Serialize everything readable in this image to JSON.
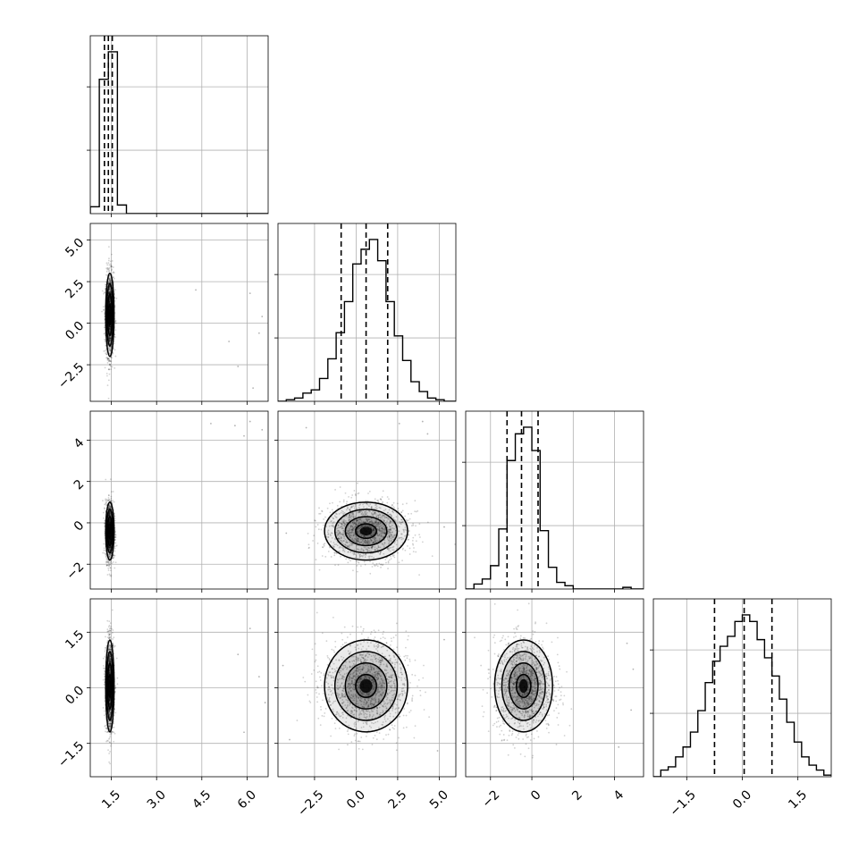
{
  "chart_data": {
    "type": "corner",
    "parameters": [
      "",
      "",
      "",
      ""
    ],
    "grid": true,
    "axis_ranges": [
      [
        0.8,
        6.7
      ],
      [
        -4.7,
        6.0
      ],
      [
        -3.2,
        5.4
      ],
      [
        -2.4,
        2.4
      ]
    ],
    "ticks": [
      {
        "values": [
          1.5,
          3.0,
          4.5,
          6.0
        ],
        "labels": [
          "1.5",
          "3.0",
          "4.5",
          "6.0"
        ]
      },
      {
        "values": [
          -2.5,
          0.0,
          2.5,
          5.0
        ],
        "labels": [
          "−2.5",
          "0.0",
          "2.5",
          "5.0"
        ]
      },
      {
        "values": [
          -2,
          0,
          2,
          4
        ],
        "labels": [
          "−2",
          "0",
          "2",
          "4"
        ]
      },
      {
        "values": [
          -1.5,
          0.0,
          1.5
        ],
        "labels": [
          "−1.5",
          "0.0",
          "1.5"
        ]
      }
    ],
    "quantiles": [
      [
        1.27,
        1.4,
        1.53
      ],
      [
        -0.9,
        0.6,
        1.9
      ],
      [
        -1.2,
        -0.5,
        0.3
      ],
      [
        -0.75,
        0.05,
        0.8
      ]
    ],
    "histograms": [
      {
        "bin_edges": [
          0.8,
          1.1,
          1.4,
          1.7,
          2.0,
          6.7
        ],
        "counts": [
          0.04,
          0.78,
          0.94,
          0.05,
          0.0
        ]
      },
      {
        "bin_edges": [
          -4.7,
          -4.2,
          -3.7,
          -3.2,
          -2.7,
          -2.2,
          -1.7,
          -1.2,
          -0.7,
          -0.2,
          0.3,
          0.8,
          1.3,
          1.8,
          2.3,
          2.8,
          3.3,
          3.8,
          4.3,
          4.8,
          5.3,
          6.0
        ],
        "counts": [
          0.0,
          0.01,
          0.02,
          0.05,
          0.07,
          0.14,
          0.26,
          0.42,
          0.61,
          0.84,
          0.93,
          0.99,
          0.86,
          0.61,
          0.4,
          0.25,
          0.12,
          0.06,
          0.02,
          0.01,
          0.0
        ]
      },
      {
        "bin_edges": [
          -3.2,
          -2.8,
          -2.4,
          -2.0,
          -1.6,
          -1.2,
          -0.8,
          -0.4,
          0.0,
          0.4,
          0.8,
          1.2,
          1.6,
          2.0,
          4.4,
          4.8,
          5.4
        ],
        "counts": [
          0.0,
          0.03,
          0.06,
          0.14,
          0.36,
          0.77,
          0.93,
          0.97,
          0.83,
          0.35,
          0.13,
          0.04,
          0.02,
          0.0,
          0.01,
          0.0
        ]
      },
      {
        "bin_edges": [
          -2.4,
          -2.2,
          -2.0,
          -1.8,
          -1.6,
          -1.4,
          -1.2,
          -1.0,
          -0.8,
          -0.6,
          -0.4,
          -0.2,
          0.0,
          0.2,
          0.4,
          0.6,
          0.8,
          1.0,
          1.2,
          1.4,
          1.6,
          1.8,
          2.0,
          2.2,
          2.4
        ],
        "counts": [
          0.0,
          0.04,
          0.06,
          0.12,
          0.18,
          0.27,
          0.4,
          0.57,
          0.7,
          0.79,
          0.85,
          0.94,
          0.98,
          0.94,
          0.83,
          0.72,
          0.61,
          0.47,
          0.33,
          0.21,
          0.12,
          0.07,
          0.04,
          0.01
        ]
      }
    ],
    "pair_panels": [
      {
        "row": 1,
        "col": 0,
        "center": [
          1.45,
          0.5
        ],
        "spread": [
          0.07,
          1.25
        ],
        "outliers": [
          [
            6.1,
            1.8
          ],
          [
            6.4,
            -0.6
          ],
          [
            5.7,
            -2.6
          ],
          [
            6.2,
            -3.9
          ],
          [
            5.4,
            -1.1
          ],
          [
            4.3,
            2.0
          ],
          [
            6.5,
            0.4
          ]
        ]
      },
      {
        "row": 2,
        "col": 0,
        "center": [
          1.45,
          -0.4
        ],
        "spread": [
          0.07,
          0.7
        ],
        "outliers": [
          [
            5.6,
            4.7
          ],
          [
            6.1,
            4.9
          ],
          [
            6.5,
            4.5
          ],
          [
            5.9,
            4.2
          ],
          [
            4.8,
            4.8
          ]
        ]
      },
      {
        "row": 2,
        "col": 1,
        "center": [
          0.6,
          -0.4
        ],
        "spread": [
          1.25,
          0.7
        ],
        "outliers": [
          [
            4.0,
            4.9
          ],
          [
            2.6,
            4.8
          ],
          [
            -3.0,
            4.6
          ],
          [
            5.3,
            -0.2
          ],
          [
            -4.2,
            -0.5
          ],
          [
            4.3,
            4.3
          ]
        ]
      },
      {
        "row": 3,
        "col": 0,
        "center": [
          1.45,
          0.05
        ],
        "spread": [
          0.07,
          0.62
        ],
        "outliers": [
          [
            6.1,
            1.6
          ],
          [
            6.4,
            0.3
          ],
          [
            5.9,
            -1.2
          ],
          [
            5.7,
            0.9
          ],
          [
            6.6,
            -0.4
          ]
        ]
      },
      {
        "row": 3,
        "col": 1,
        "center": [
          0.6,
          0.05
        ],
        "spread": [
          1.25,
          0.62
        ],
        "outliers": [
          [
            5.3,
            1.3
          ],
          [
            -4.4,
            0.6
          ],
          [
            4.9,
            -1.7
          ],
          [
            -4.0,
            -1.4
          ]
        ]
      },
      {
        "row": 3,
        "col": 2,
        "center": [
          -0.4,
          0.05
        ],
        "spread": [
          0.7,
          0.62
        ],
        "outliers": [
          [
            4.6,
            1.2
          ],
          [
            4.9,
            0.5
          ],
          [
            4.2,
            -1.6
          ],
          [
            4.8,
            -0.6
          ]
        ]
      }
    ]
  }
}
